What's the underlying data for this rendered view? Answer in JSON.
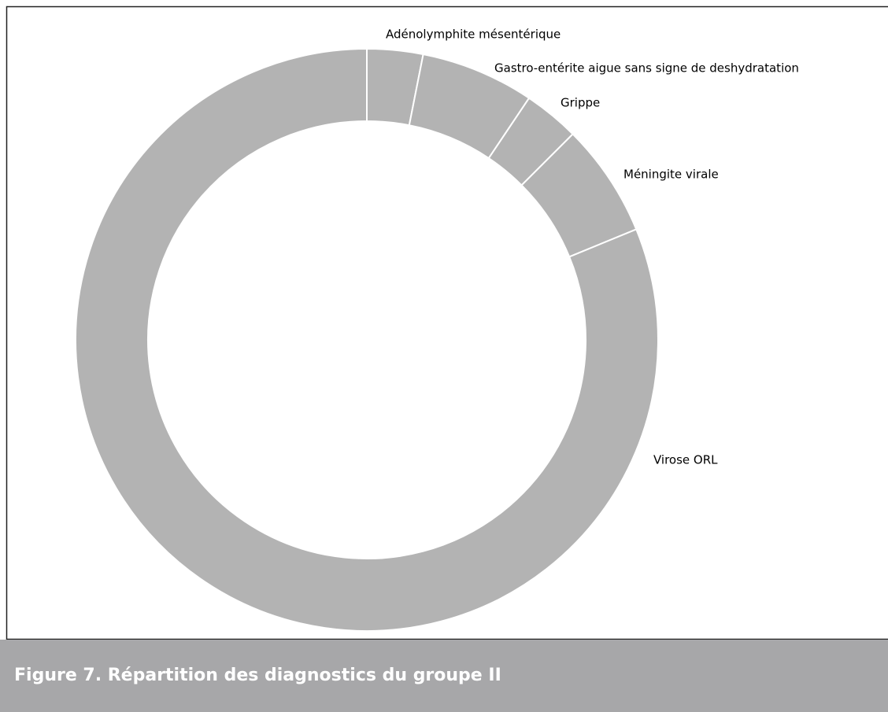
{
  "chart_data": {
    "type": "donut",
    "categories": [
      "Adénolymphite mésentérique",
      "Gastro-entérite aigue sans signe de deshydratation",
      "Grippe",
      "Méningite virale",
      "Virose ORL"
    ],
    "values": [
      3.1,
      6.3,
      3.1,
      6.3,
      81.2
    ],
    "color": "#b3b3b3"
  },
  "caption": "Figure 7. Répartition des diagnostics du groupe II"
}
